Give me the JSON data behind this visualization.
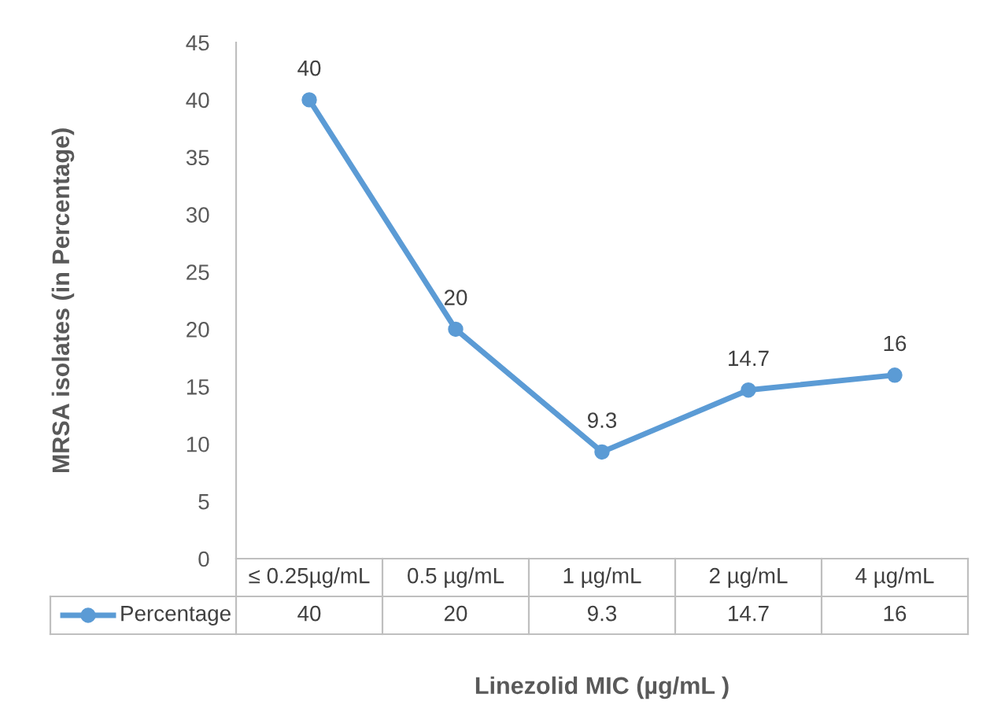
{
  "chart_data": {
    "type": "line",
    "xlabel": "Linezolid MIC (µg/mL )",
    "ylabel": "MRSA isolates (in Percentage)",
    "categories": [
      "≤ 0.25µg/mL",
      "0.5 µg/mL",
      "1 µg/mL",
      "2 µg/mL",
      "4 µg/mL"
    ],
    "series": [
      {
        "name": "Percentage",
        "color": "#5b9bd5",
        "values": [
          40,
          20,
          9.3,
          14.7,
          16
        ]
      }
    ],
    "annotations": [
      "40",
      "20",
      "9.3",
      "14.7",
      "16"
    ],
    "ylim": [
      0,
      45
    ],
    "yticks": [
      0,
      5,
      10,
      15,
      20,
      25,
      30,
      35,
      40,
      45
    ],
    "grid": false,
    "marker": "circle",
    "line_style": "solid",
    "data_labels": true
  }
}
